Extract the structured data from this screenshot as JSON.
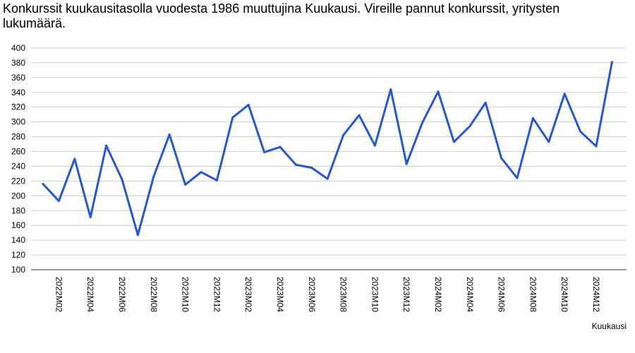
{
  "chart_data": {
    "type": "line",
    "title": "Konkurssit kuukausitasolla vuodesta 1986 muuttujina Kuukausi. Vireille pannut konkurssit, yritysten lukumäärä.",
    "xlabel": "Kuukausi",
    "ylabel": "",
    "ylim": [
      100,
      400
    ],
    "yticks": [
      "100",
      "120",
      "140",
      "160",
      "180",
      "200",
      "220",
      "240",
      "260",
      "280",
      "300",
      "320",
      "340",
      "360",
      "380",
      "400"
    ],
    "grid": true,
    "x": [
      "2022M01",
      "2022M02",
      "2022M03",
      "2022M04",
      "2022M05",
      "2022M06",
      "2022M07",
      "2022M08",
      "2022M09",
      "2022M10",
      "2022M11",
      "2022M12",
      "2023M01",
      "2023M02",
      "2023M03",
      "2023M04",
      "2023M05",
      "2023M06",
      "2023M07",
      "2023M08",
      "2023M09",
      "2023M10",
      "2023M11",
      "2023M12",
      "2024M01",
      "2024M02",
      "2024M03",
      "2024M04",
      "2024M05",
      "2024M06",
      "2024M07",
      "2024M08",
      "2024M09",
      "2024M10",
      "2024M11",
      "2024M12",
      "2025M01"
    ],
    "x_tick_labels": [
      "2022M02",
      "2022M04",
      "2022M06",
      "2022M08",
      "2022M10",
      "2022M12",
      "2023M02",
      "2023M04",
      "2023M06",
      "2023M08",
      "2023M10",
      "2023M12",
      "2024M02",
      "2024M04",
      "2024M06",
      "2024M08",
      "2024M10",
      "2024M12"
    ],
    "series": [
      {
        "name": "",
        "color": "#2456d6",
        "values": [
          216,
          193,
          250,
          171,
          268,
          222,
          147,
          226,
          283,
          215,
          232,
          221,
          306,
          323,
          259,
          266,
          242,
          238,
          223,
          282,
          309,
          268,
          344,
          243,
          299,
          341,
          273,
          294,
          326,
          251,
          224,
          305,
          273,
          338,
          287,
          267,
          381
        ]
      }
    ]
  }
}
